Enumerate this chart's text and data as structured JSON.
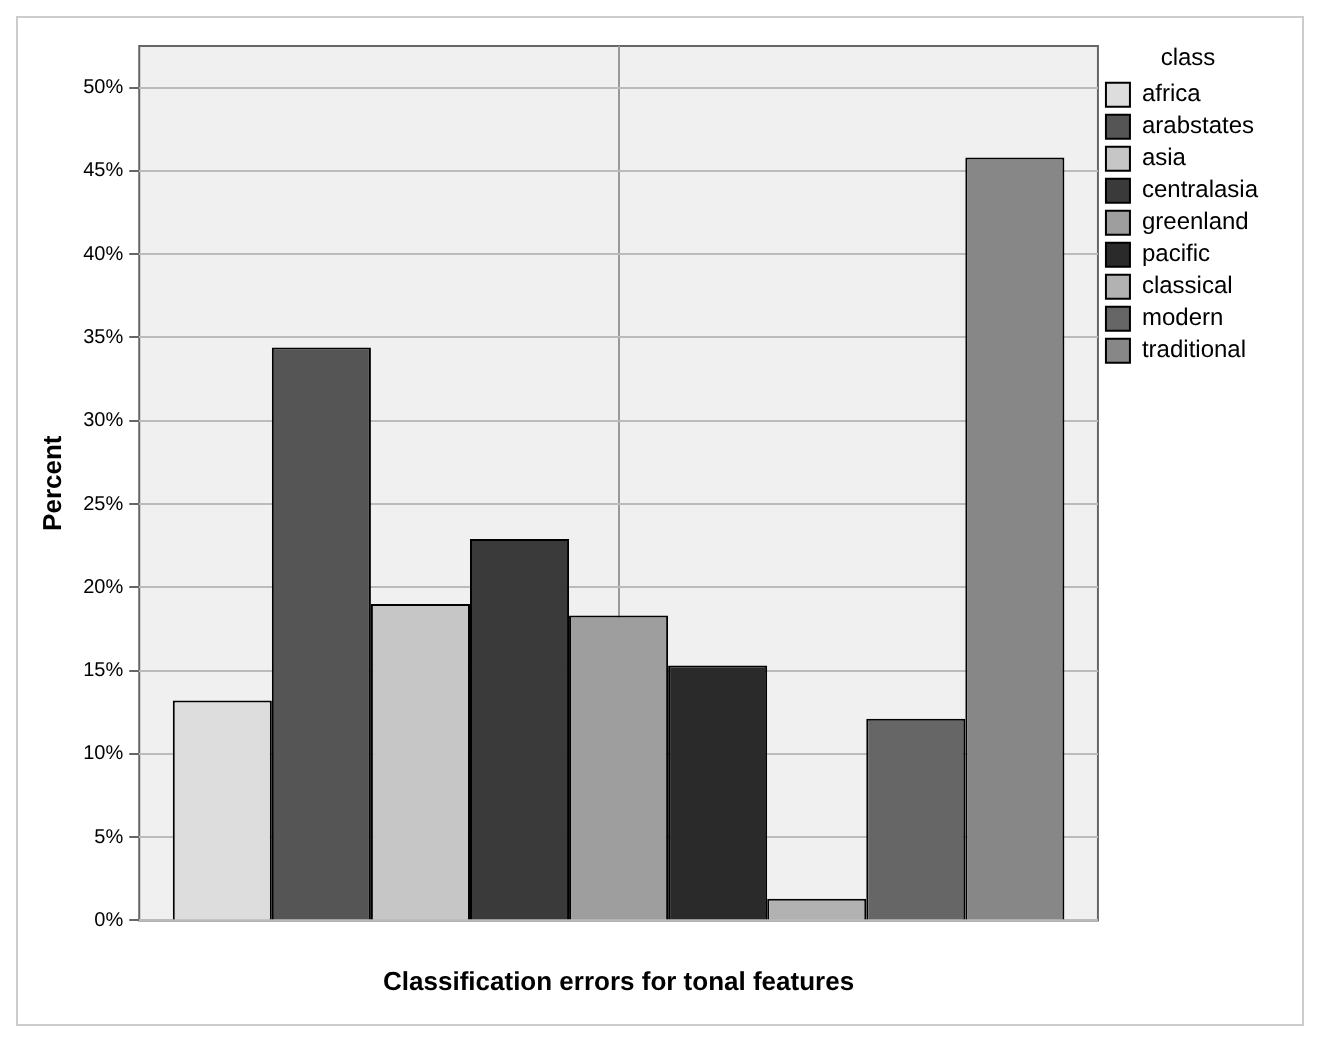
{
  "chart_data": {
    "type": "bar",
    "xlabel": "Classification errors for tonal features",
    "ylabel": "Percent",
    "legend_title": "class",
    "categories": [
      null
    ],
    "series": [
      {
        "name": "africa",
        "color": "#dddddd",
        "values": [
          13.2
        ]
      },
      {
        "name": "arabstates",
        "color": "#555555",
        "values": [
          34.4
        ]
      },
      {
        "name": "asia",
        "color": "#c6c6c6",
        "values": [
          19.0
        ]
      },
      {
        "name": "centralasia",
        "color": "#3a3a3a",
        "values": [
          22.9
        ]
      },
      {
        "name": "greenland",
        "color": "#9e9e9e",
        "values": [
          18.3
        ]
      },
      {
        "name": "pacific",
        "color": "#2a2a2a",
        "values": [
          15.3
        ]
      },
      {
        "name": "classical",
        "color": "#b2b2b2",
        "values": [
          1.3
        ]
      },
      {
        "name": "modern",
        "color": "#666666",
        "values": [
          12.1
        ]
      },
      {
        "name": "traditional",
        "color": "#878787",
        "values": [
          45.8
        ]
      }
    ],
    "ylim": [
      0,
      52.5
    ],
    "yticks": [
      {
        "value": 0,
        "label": "0%"
      },
      {
        "value": 5,
        "label": "5%"
      },
      {
        "value": 10,
        "label": "10%"
      },
      {
        "value": 15,
        "label": "15%"
      },
      {
        "value": 20,
        "label": "20%"
      },
      {
        "value": 25,
        "label": "25%"
      },
      {
        "value": 30,
        "label": "30%"
      },
      {
        "value": 35,
        "label": "35%"
      },
      {
        "value": 40,
        "label": "40%"
      },
      {
        "value": 45,
        "label": "45%"
      },
      {
        "value": 50,
        "label": "50%"
      }
    ],
    "grid": true,
    "legend": "right"
  }
}
